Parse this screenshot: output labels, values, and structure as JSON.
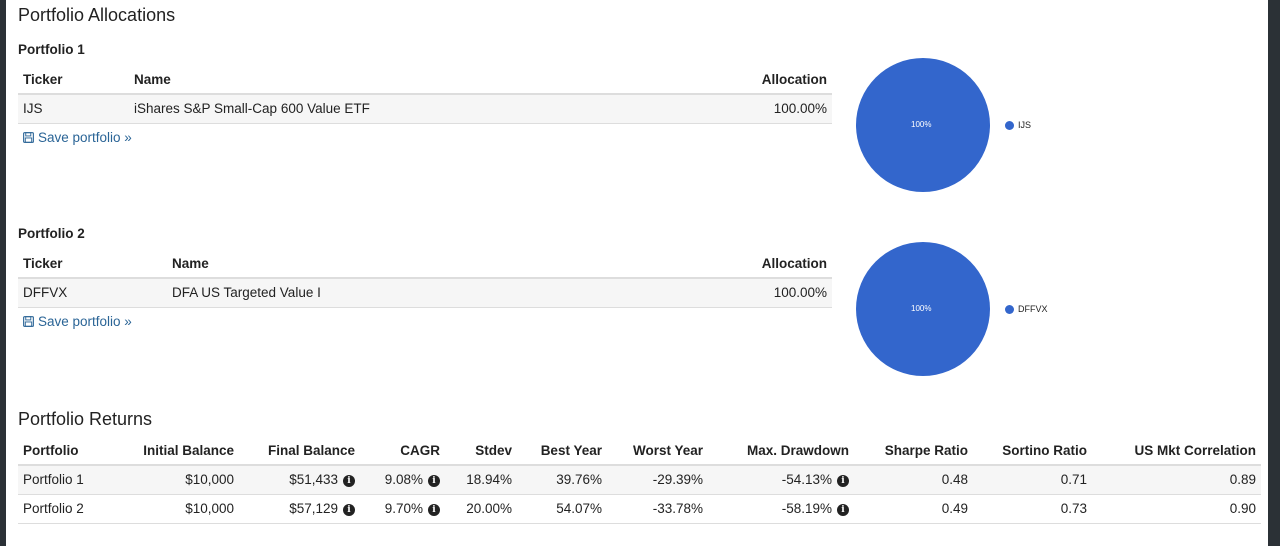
{
  "page": {
    "title": "Portfolio Allocations",
    "returns_title": "Portfolio Returns"
  },
  "portfolios": [
    {
      "heading": "Portfolio 1",
      "columns": [
        "Ticker",
        "Name",
        "Allocation"
      ],
      "rows": [
        {
          "ticker": "IJS",
          "name": "iShares S&P Small-Cap 600 Value ETF",
          "allocation": "100.00%"
        }
      ],
      "save_label": "Save portfolio »",
      "pie": {
        "label": "100%",
        "legend": "IJS"
      }
    },
    {
      "heading": "Portfolio 2",
      "columns": [
        "Ticker",
        "Name",
        "Allocation"
      ],
      "rows": [
        {
          "ticker": "DFFVX",
          "name": "DFA US Targeted Value I",
          "allocation": "100.00%"
        }
      ],
      "save_label": "Save portfolio »",
      "pie": {
        "label": "100%",
        "legend": "DFFVX"
      }
    }
  ],
  "chart_data": [
    {
      "type": "pie",
      "categories": [
        "IJS"
      ],
      "values": [
        100
      ],
      "legend": "right"
    },
    {
      "type": "pie",
      "categories": [
        "DFFVX"
      ],
      "values": [
        100
      ],
      "legend": "right"
    }
  ],
  "returns": {
    "columns": [
      "Portfolio",
      "Initial Balance",
      "Final Balance",
      "CAGR",
      "Stdev",
      "Best Year",
      "Worst Year",
      "Max. Drawdown",
      "Sharpe Ratio",
      "Sortino Ratio",
      "US Mkt Correlation"
    ],
    "rows": [
      {
        "portfolio": "Portfolio 1",
        "initial": "$10,000",
        "final": "$51,433",
        "cagr": "9.08%",
        "stdev": "18.94%",
        "best": "39.76%",
        "worst": "-29.39%",
        "drawdown": "-54.13%",
        "sharpe": "0.48",
        "sortino": "0.71",
        "corr": "0.89"
      },
      {
        "portfolio": "Portfolio 2",
        "initial": "$10,000",
        "final": "$57,129",
        "cagr": "9.70%",
        "stdev": "20.00%",
        "best": "54.07%",
        "worst": "-33.78%",
        "drawdown": "-58.19%",
        "sharpe": "0.49",
        "sortino": "0.73",
        "corr": "0.90"
      }
    ]
  },
  "icons": {
    "save": "floppy-disk-icon",
    "info": "info-circle-icon",
    "info_glyph": "i"
  },
  "colors": {
    "pie": "#3366cc",
    "link": "#2a6496"
  }
}
